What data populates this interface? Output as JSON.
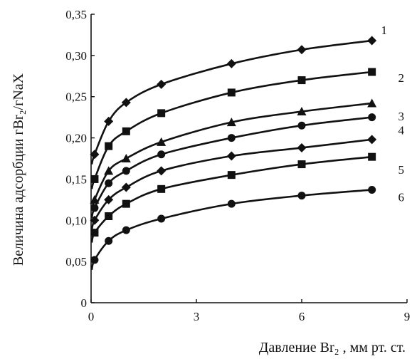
{
  "chart_data": {
    "type": "scatter",
    "xlabel": "Давление Br₂ , мм рт. ст.",
    "ylabel": "Величина адсорбции  гBr₂/гNaX",
    "xlim": [
      0,
      9
    ],
    "ylim": [
      0,
      0.35
    ],
    "x_ticks": [
      "0",
      "3",
      "6",
      "9"
    ],
    "y_ticks": [
      "0",
      "0,05",
      "0,10",
      "0,15",
      "0,20",
      "0,25",
      "0,30",
      "0,35"
    ],
    "grid": false,
    "legend": "curve numbers beside the right end of curves",
    "series": [
      {
        "label": "1",
        "marker": "diamond",
        "x": [
          0.1,
          0.5,
          1,
          2,
          4,
          6,
          8
        ],
        "y": [
          0.18,
          0.22,
          0.243,
          0.265,
          0.29,
          0.307,
          0.318
        ]
      },
      {
        "label": "2",
        "marker": "square",
        "x": [
          0.1,
          0.5,
          1,
          2,
          4,
          6,
          8
        ],
        "y": [
          0.15,
          0.19,
          0.208,
          0.23,
          0.255,
          0.27,
          0.28
        ]
      },
      {
        "label": "3",
        "marker": "triangle",
        "x": [
          0.1,
          0.5,
          1,
          2,
          4,
          6,
          8
        ],
        "y": [
          0.125,
          0.16,
          0.175,
          0.195,
          0.219,
          0.232,
          0.242
        ]
      },
      {
        "label": "4",
        "marker": "circle",
        "x": [
          0.1,
          0.5,
          1,
          2,
          4,
          6,
          8
        ],
        "y": [
          0.115,
          0.145,
          0.16,
          0.18,
          0.2,
          0.215,
          0.225
        ]
      },
      {
        "label": "",
        "marker": "diamond",
        "x": [
          0.1,
          0.5,
          1,
          2,
          4,
          6,
          8
        ],
        "y": [
          0.1,
          0.125,
          0.14,
          0.16,
          0.178,
          0.188,
          0.198
        ]
      },
      {
        "label": "5",
        "marker": "square",
        "x": [
          0.1,
          0.5,
          1,
          2,
          4,
          6,
          8
        ],
        "y": [
          0.085,
          0.105,
          0.12,
          0.138,
          0.155,
          0.168,
          0.177
        ]
      },
      {
        "label": "6",
        "marker": "circle",
        "x": [
          0.1,
          0.5,
          1,
          2,
          4,
          6,
          8
        ],
        "y": [
          0.052,
          0.075,
          0.088,
          0.102,
          0.12,
          0.13,
          0.137
        ]
      }
    ]
  },
  "colors": {
    "ink": "#111111",
    "background": "#ffffff"
  }
}
